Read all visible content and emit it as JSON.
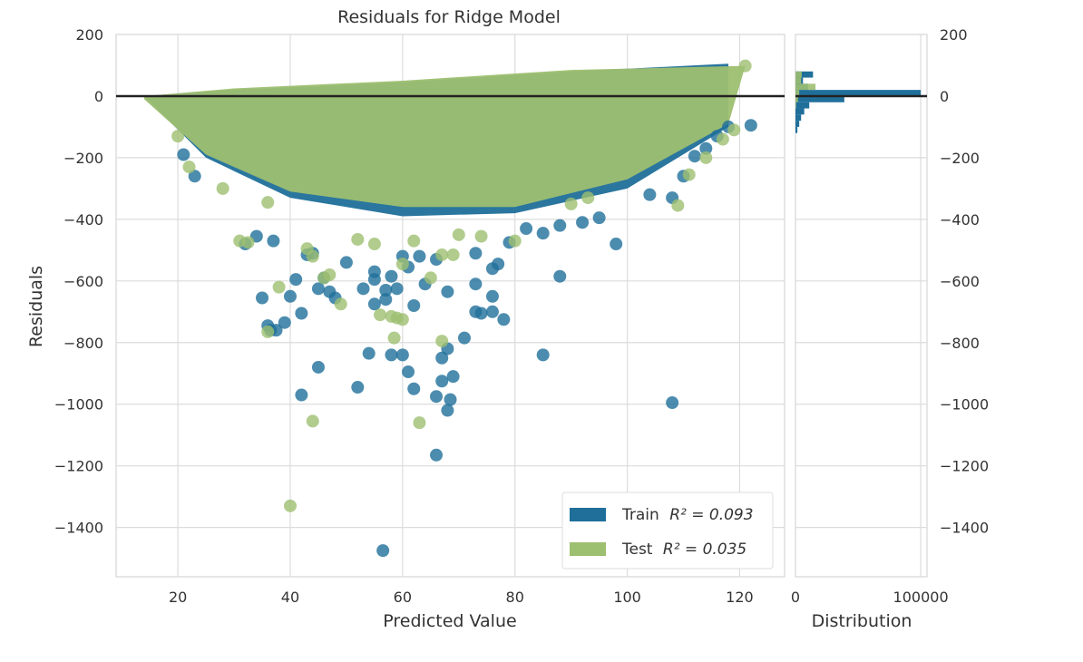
{
  "chart_data": {
    "type": "scatter",
    "title": "Residuals for Ridge Model",
    "xlabel": "Predicted Value",
    "ylabel": "Residuals",
    "xlim": [
      9,
      128
    ],
    "ylim": [
      -1560,
      200
    ],
    "xticks": [
      20,
      40,
      60,
      80,
      100,
      120
    ],
    "yticks": [
      200,
      0,
      -200,
      -400,
      -600,
      -800,
      -1000,
      -1200,
      -1400
    ],
    "grid": true,
    "zero_line": 0,
    "legend": {
      "placement": "lower-right",
      "entries": [
        {
          "label": "Train",
          "r2_label": "R² = 0.093",
          "color": "#1f6f9a"
        },
        {
          "label": "Test",
          "r2_label": "R² = 0.035",
          "color": "#9dbf70"
        }
      ]
    },
    "series": [
      {
        "name": "Train",
        "color": "#1f6f9a",
        "dense_band": {
          "upper": [
            [
              14,
              0
            ],
            [
              30,
              20
            ],
            [
              60,
              45
            ],
            [
              90,
              80
            ],
            [
              118,
              105
            ]
          ],
          "lower": [
            [
              14,
              0
            ],
            [
              25,
              -200
            ],
            [
              40,
              -330
            ],
            [
              60,
              -390
            ],
            [
              80,
              -380
            ],
            [
              100,
              -300
            ],
            [
              118,
              -100
            ]
          ]
        },
        "outliers": [
          [
            56.5,
            -1475
          ],
          [
            66,
            -1165
          ],
          [
            108,
            -995
          ],
          [
            68,
            -1020
          ],
          [
            66,
            -975
          ],
          [
            68.5,
            -985
          ],
          [
            42,
            -970
          ],
          [
            52,
            -945
          ],
          [
            62,
            -950
          ],
          [
            67,
            -925
          ],
          [
            69,
            -910
          ],
          [
            45,
            -880
          ],
          [
            61,
            -895
          ],
          [
            85,
            -840
          ],
          [
            54,
            -835
          ],
          [
            58,
            -840
          ],
          [
            60,
            -840
          ],
          [
            67,
            -850
          ],
          [
            68,
            -820
          ],
          [
            71,
            -785
          ],
          [
            78,
            -725
          ],
          [
            36.5,
            -760
          ],
          [
            37.5,
            -760
          ],
          [
            36,
            -745
          ],
          [
            39,
            -735
          ],
          [
            42,
            -705
          ],
          [
            73,
            -700
          ],
          [
            74,
            -705
          ],
          [
            76,
            -700
          ],
          [
            48,
            -655
          ],
          [
            55,
            -675
          ],
          [
            57,
            -660
          ],
          [
            35,
            -655
          ],
          [
            40,
            -650
          ],
          [
            47,
            -635
          ],
          [
            59,
            -625
          ],
          [
            62,
            -680
          ],
          [
            68,
            -635
          ],
          [
            76,
            -650
          ],
          [
            88,
            -585
          ],
          [
            73,
            -610
          ],
          [
            45,
            -625
          ],
          [
            55,
            -595
          ],
          [
            53,
            -625
          ],
          [
            57,
            -630
          ],
          [
            61,
            -555
          ],
          [
            64,
            -610
          ],
          [
            98,
            -480
          ],
          [
            108,
            -330
          ],
          [
            34,
            -455
          ],
          [
            37,
            -470
          ],
          [
            32,
            -480
          ],
          [
            44,
            -510
          ],
          [
            46,
            -590
          ],
          [
            50,
            -540
          ],
          [
            55,
            -570
          ],
          [
            58,
            -585
          ],
          [
            60,
            -520
          ],
          [
            63,
            -520
          ],
          [
            66,
            -530
          ],
          [
            73,
            -510
          ],
          [
            76,
            -560
          ],
          [
            77,
            -545
          ],
          [
            79,
            -475
          ],
          [
            82,
            -430
          ],
          [
            85,
            -445
          ],
          [
            88,
            -420
          ],
          [
            92,
            -410
          ],
          [
            95,
            -395
          ],
          [
            104,
            -320
          ],
          [
            110,
            -260
          ],
          [
            112,
            -195
          ],
          [
            114,
            -170
          ],
          [
            116,
            -130
          ],
          [
            118,
            -100
          ],
          [
            122,
            -95
          ],
          [
            21,
            -190
          ],
          [
            23,
            -260
          ],
          [
            41,
            -595
          ],
          [
            43,
            -515
          ]
        ]
      },
      {
        "name": "Test",
        "color": "#9dbf70",
        "dense_band": {
          "upper": [
            [
              14,
              0
            ],
            [
              30,
              25
            ],
            [
              60,
              50
            ],
            [
              90,
              85
            ],
            [
              121,
              98
            ]
          ],
          "lower": [
            [
              14,
              -10
            ],
            [
              25,
              -190
            ],
            [
              40,
              -310
            ],
            [
              60,
              -360
            ],
            [
              80,
              -360
            ],
            [
              100,
              -270
            ],
            [
              118,
              -90
            ]
          ]
        },
        "outliers": [
          [
            40,
            -1330
          ],
          [
            44,
            -1055
          ],
          [
            63,
            -1060
          ],
          [
            67,
            -795
          ],
          [
            58.5,
            -785
          ],
          [
            59,
            -720
          ],
          [
            60,
            -725
          ],
          [
            56,
            -710
          ],
          [
            58,
            -715
          ],
          [
            36,
            -765
          ],
          [
            49,
            -675
          ],
          [
            38,
            -620
          ],
          [
            46,
            -590
          ],
          [
            47,
            -580
          ],
          [
            67,
            -515
          ],
          [
            69,
            -515
          ],
          [
            65,
            -590
          ],
          [
            60,
            -545
          ],
          [
            31,
            -470
          ],
          [
            32.5,
            -475
          ],
          [
            43,
            -495
          ],
          [
            44,
            -520
          ],
          [
            52,
            -465
          ],
          [
            55,
            -480
          ],
          [
            62,
            -470
          ],
          [
            70,
            -450
          ],
          [
            74,
            -455
          ],
          [
            80,
            -470
          ],
          [
            90,
            -350
          ],
          [
            93,
            -330
          ],
          [
            109,
            -355
          ],
          [
            111,
            -255
          ],
          [
            114,
            -200
          ],
          [
            117,
            -140
          ],
          [
            119,
            -110
          ],
          [
            121,
            98
          ],
          [
            20,
            -130
          ],
          [
            22,
            -230
          ],
          [
            28,
            -300
          ],
          [
            36,
            -345
          ]
        ]
      }
    ],
    "histogram": {
      "xlabel": "Distribution",
      "xticks": [
        0,
        100000
      ],
      "xlim": [
        0,
        105000
      ],
      "bins": [
        {
          "y0": 60,
          "y1": 80,
          "train": 14000,
          "test": 5000
        },
        {
          "y0": 40,
          "y1": 60,
          "train": 6000,
          "test": 4500
        },
        {
          "y0": 20,
          "y1": 40,
          "train": 10000,
          "test": 16000
        },
        {
          "y0": 0,
          "y1": 20,
          "train": 100000,
          "test": 3000
        },
        {
          "y0": -20,
          "y1": 0,
          "train": 39000,
          "test": 2000
        },
        {
          "y0": -40,
          "y1": -20,
          "train": 11000,
          "test": 500
        },
        {
          "y0": -60,
          "y1": -40,
          "train": 7000,
          "test": 0
        },
        {
          "y0": -80,
          "y1": -60,
          "train": 4500,
          "test": 0
        },
        {
          "y0": -100,
          "y1": -80,
          "train": 3000,
          "test": 0
        },
        {
          "y0": -120,
          "y1": -100,
          "train": 1500,
          "test": 0
        }
      ]
    }
  }
}
